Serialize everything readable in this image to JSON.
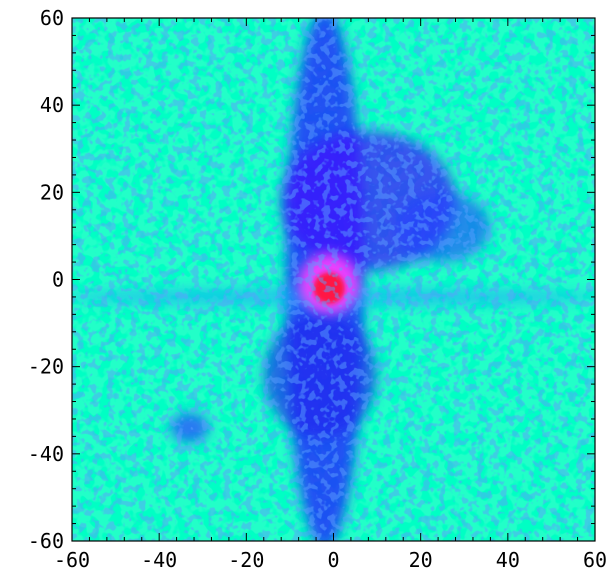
{
  "chart_data": {
    "type": "heatmap",
    "title": "",
    "xlabel": "",
    "ylabel": "",
    "xlim": [
      -60,
      60
    ],
    "ylim": [
      -60,
      60
    ],
    "x_ticks": [
      -60,
      -40,
      -20,
      0,
      20,
      40,
      60
    ],
    "y_ticks": [
      -60,
      -40,
      -20,
      0,
      20,
      40,
      60
    ],
    "x_tick_labels": [
      "-60",
      "-40",
      "-20",
      "0",
      "20",
      "40",
      "60"
    ],
    "y_tick_labels": [
      "-60",
      "-40",
      "-20",
      "0",
      "20",
      "40",
      "60"
    ],
    "minor_ticks_per_interval": 4,
    "colormap": [
      "#00ff00",
      "#00ffff",
      "#0000ff",
      "#ff00ff",
      "#ff0000"
    ],
    "background_color": "#22ffc8",
    "features": [
      {
        "name": "peak",
        "x": -1,
        "y": -2,
        "level": 1.0,
        "color": "#ff1744"
      },
      {
        "name": "peak-halo",
        "x": -1,
        "y": -1,
        "level": 0.75,
        "color": "#ff40ff"
      },
      {
        "name": "vertical-streak",
        "x": -2,
        "y": 0,
        "level": 0.45,
        "color": "#2020ff"
      },
      {
        "name": "horizontal-streak",
        "x": 0,
        "y": -4,
        "level": 0.4,
        "color": "#20a0ff"
      },
      {
        "name": "upper-lobe",
        "x": 8,
        "y": 18,
        "level": 0.55,
        "color": "#4010ff"
      },
      {
        "name": "right-lobe",
        "x": 25,
        "y": 12,
        "level": 0.45,
        "color": "#2040ff"
      },
      {
        "name": "lower-lobe",
        "x": -3,
        "y": -22,
        "level": 0.45,
        "color": "#2020f0"
      },
      {
        "name": "lower-left-patch",
        "x": -33,
        "y": -34,
        "level": 0.42,
        "color": "#2a4dff"
      }
    ]
  }
}
